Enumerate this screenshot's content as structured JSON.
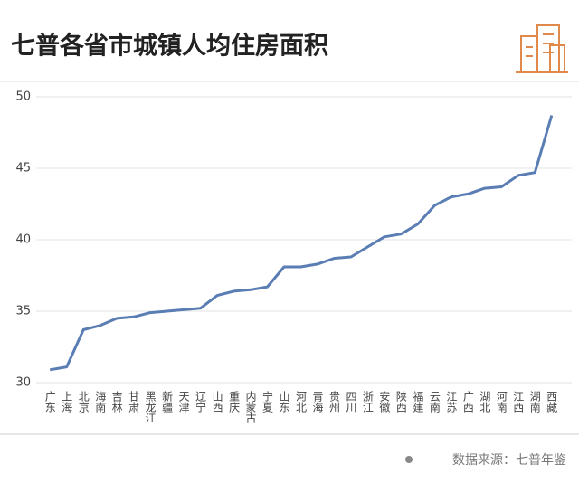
{
  "chart_data": {
    "type": "line",
    "title": "七普各省市城镇人均住房面积",
    "categories": [
      "广东",
      "上海",
      "北京",
      "海南",
      "吉林",
      "甘肃",
      "黑龙江",
      "新疆",
      "天津",
      "辽宁",
      "山西",
      "重庆",
      "内蒙古",
      "宁夏",
      "山东",
      "河北",
      "青海",
      "贵州",
      "四川",
      "浙江",
      "安徽",
      "陕西",
      "福建",
      "云南",
      "江苏",
      "广西",
      "湖北",
      "河南",
      "江西",
      "湖南",
      "西藏"
    ],
    "values": [
      30.9,
      31.1,
      33.7,
      34.0,
      34.5,
      34.6,
      34.9,
      35.0,
      35.1,
      35.2,
      36.1,
      36.4,
      36.5,
      36.7,
      38.1,
      38.1,
      38.3,
      38.7,
      38.8,
      39.5,
      40.2,
      40.4,
      41.1,
      42.4,
      43.0,
      43.2,
      43.6,
      43.7,
      44.5,
      44.7,
      48.7
    ],
    "color": "#5a7db4",
    "ylim": [
      30,
      50
    ],
    "yticks": [
      30,
      35,
      40,
      45,
      50
    ],
    "grid": true,
    "source": "数据来源：七普年鉴"
  }
}
